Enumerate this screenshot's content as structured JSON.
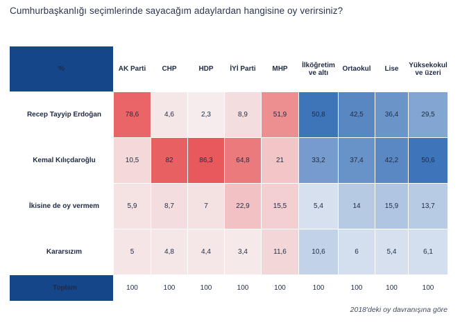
{
  "title": "Cumhurbaşkanlığı seçimlerinde sayacağım adaylardan hangisine oy verirsiniz?",
  "footnote": "2018'deki oy davranışına göre",
  "colors": {
    "header_blue": "#15468a",
    "party_scale_high": "#e8595c",
    "edu_scale_high": "#3a72b8"
  },
  "chart_data": {
    "type": "table",
    "corner_label": "%",
    "party_columns": [
      "AK Parti",
      "CHP",
      "HDP",
      "İYİ Parti",
      "MHP"
    ],
    "education_columns": [
      "İlköğretim ve altı",
      "Ortaokul",
      "Lise",
      "Yüksekokul ve üzeri"
    ],
    "rows": [
      {
        "label": "Recep Tayyip Erdoğan",
        "values": [
          "78,6",
          "4,6",
          "2,3",
          "8,9",
          "51,9",
          "50,8",
          "42,5",
          "36,4",
          "29,5"
        ]
      },
      {
        "label": "Kemal Kılıçdaroğlu",
        "values": [
          "10,5",
          "82",
          "86,3",
          "64,8",
          "21",
          "33,2",
          "37,4",
          "42,2",
          "50,6"
        ]
      },
      {
        "label": "İkisine de oy vermem",
        "values": [
          "5,9",
          "8,7",
          "7",
          "22,9",
          "15,5",
          "5,4",
          "14",
          "15,9",
          "13,7"
        ]
      },
      {
        "label": "Kararsızım",
        "values": [
          "5",
          "4,8",
          "4,4",
          "3,4",
          "11,6",
          "10,6",
          "6",
          "5,4",
          "6,1"
        ]
      }
    ],
    "total": {
      "label": "Toplam",
      "values": [
        "100",
        "100",
        "100",
        "100",
        "100",
        "100",
        "100",
        "100",
        "100"
      ]
    }
  }
}
